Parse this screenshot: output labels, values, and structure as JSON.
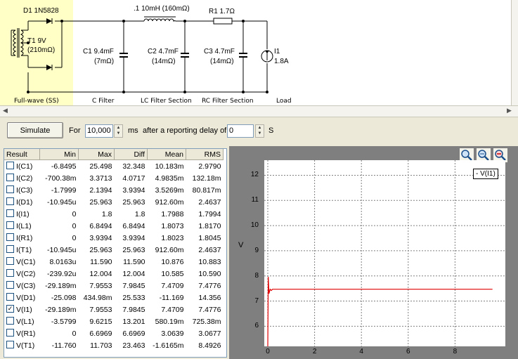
{
  "schematic": {
    "labels": {
      "d1": "D1 1N5828",
      "t1_name": "T1 9V",
      "t1_res": "(210mΩ)",
      "c1_name": "C1 9.4mF",
      "c1_esr": "(7mΩ)",
      "l1": ".1 10mH (160mΩ)",
      "c2_name": "C2 4.7mF",
      "c2_esr": "(14mΩ)",
      "r1": "R1 1.7Ω",
      "c3_name": "C3 4.7mF",
      "c3_esr": "(14mΩ)",
      "i1_name": "I1",
      "i1_val": "1.8A"
    },
    "sections": {
      "fullwave": "Full-wave (SS)",
      "cfilter": "C Filter",
      "lcfilter": "LC Filter Section",
      "rcfilter": "RC Filter Section",
      "load": "Load"
    },
    "highlight_color": "#ffffc6"
  },
  "toolbar": {
    "simulate_label": "Simulate",
    "for_label": "For",
    "duration_value": "10,000",
    "ms_label": "ms",
    "delay_label": "after a reporting delay of",
    "delay_value": "0",
    "s_label": "S"
  },
  "results": {
    "headers": [
      "Result",
      "Min",
      "Max",
      "Diff",
      "Mean",
      "RMS"
    ],
    "rows": [
      {
        "name": "I(C1)",
        "checked": false,
        "min": "-6.8495",
        "max": "25.498",
        "diff": "32.348",
        "mean": "10.183m",
        "rms": "2.9790"
      },
      {
        "name": "I(C2)",
        "checked": false,
        "min": "-700.38m",
        "max": "3.3713",
        "diff": "4.0717",
        "mean": "4.9835m",
        "rms": "132.18m"
      },
      {
        "name": "I(C3)",
        "checked": false,
        "min": "-1.7999",
        "max": "2.1394",
        "diff": "3.9394",
        "mean": "3.5269m",
        "rms": "80.817m"
      },
      {
        "name": "I(D1)",
        "checked": false,
        "min": "-10.945u",
        "max": "25.963",
        "diff": "25.963",
        "mean": "912.60m",
        "rms": "2.4637"
      },
      {
        "name": "I(I1)",
        "checked": false,
        "min": "0",
        "max": "1.8",
        "diff": "1.8",
        "mean": "1.7988",
        "rms": "1.7994"
      },
      {
        "name": "I(L1)",
        "checked": false,
        "min": "0",
        "max": "6.8494",
        "diff": "6.8494",
        "mean": "1.8073",
        "rms": "1.8170"
      },
      {
        "name": "I(R1)",
        "checked": false,
        "min": "0",
        "max": "3.9394",
        "diff": "3.9394",
        "mean": "1.8023",
        "rms": "1.8045"
      },
      {
        "name": "I(T1)",
        "checked": false,
        "min": "-10.945u",
        "max": "25.963",
        "diff": "25.963",
        "mean": "912.60m",
        "rms": "2.4637"
      },
      {
        "name": "V(C1)",
        "checked": false,
        "min": "8.0163u",
        "max": "11.590",
        "diff": "11.590",
        "mean": "10.876",
        "rms": "10.883"
      },
      {
        "name": "V(C2)",
        "checked": false,
        "min": "-239.92u",
        "max": "12.004",
        "diff": "12.004",
        "mean": "10.585",
        "rms": "10.590"
      },
      {
        "name": "V(C3)",
        "checked": false,
        "min": "-29.189m",
        "max": "7.9553",
        "diff": "7.9845",
        "mean": "7.4709",
        "rms": "7.4776"
      },
      {
        "name": "V(D1)",
        "checked": false,
        "min": "-25.098",
        "max": "434.98m",
        "diff": "25.533",
        "mean": "-11.169",
        "rms": "14.356"
      },
      {
        "name": "V(I1)",
        "checked": true,
        "min": "-29.189m",
        "max": "7.9553",
        "diff": "7.9845",
        "mean": "7.4709",
        "rms": "7.4776"
      },
      {
        "name": "V(L1)",
        "checked": false,
        "min": "-3.5799",
        "max": "9.6215",
        "diff": "13.201",
        "mean": "580.19m",
        "rms": "725.38m"
      },
      {
        "name": "V(R1)",
        "checked": false,
        "min": "0",
        "max": "6.6969",
        "diff": "6.6969",
        "mean": "3.0639",
        "rms": "3.0677"
      },
      {
        "name": "V(T1)",
        "checked": false,
        "min": "-11.760",
        "max": "11.703",
        "diff": "23.463",
        "mean": "-1.6165m",
        "rms": "8.4926"
      }
    ]
  },
  "graph": {
    "zoom_icons": [
      "zoom-in-icon",
      "zoom-fit-icon",
      "zoom-out-icon"
    ],
    "trace_color": "#e00000",
    "chart_data": {
      "type": "line",
      "xlim": [
        0,
        10
      ],
      "ylim": [
        5.2,
        12.6
      ],
      "yticks": [
        6,
        7,
        8,
        9,
        10,
        11,
        12
      ],
      "xticks": [
        0,
        2,
        4,
        6,
        8
      ],
      "ylabel": "V",
      "grid": true,
      "legend_position": "top-right",
      "series": [
        {
          "name": "V(I1)",
          "x": [
            0,
            0.02,
            0.05,
            0.1,
            0.15,
            0.2,
            1,
            3,
            5,
            7,
            9.6
          ],
          "y": [
            5.2,
            7.96,
            7.3,
            7.47,
            7.42,
            7.47,
            7.47,
            7.47,
            7.47,
            7.47,
            7.47
          ]
        }
      ]
    },
    "legend_text": "- V(I1)"
  }
}
